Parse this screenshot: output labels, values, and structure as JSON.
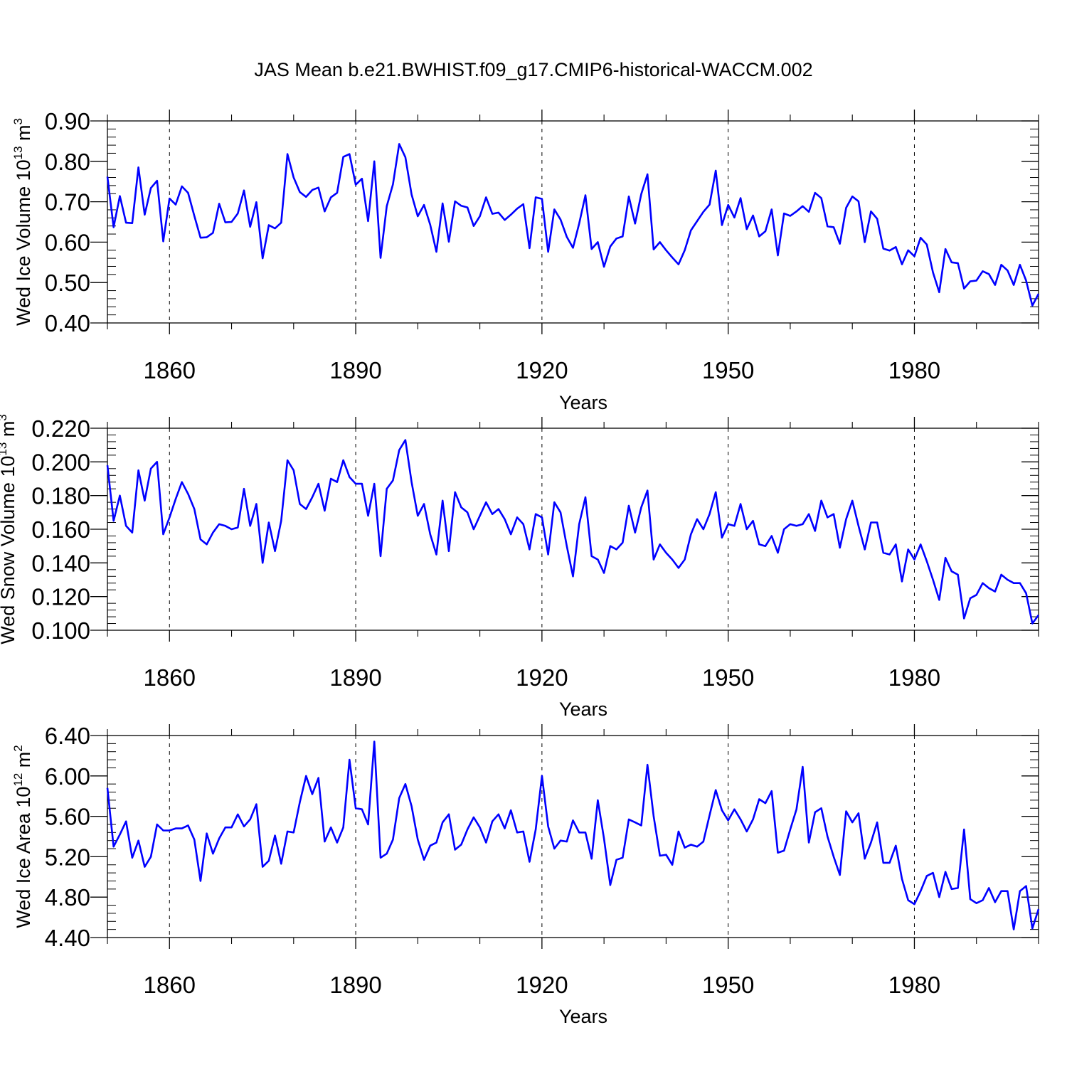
{
  "title": "JAS Mean b.e21.BWHIST.f09_g17.CMIP6-historical-WACCM.002",
  "colors": {
    "line": "#0000ff",
    "axis": "#000000",
    "grid": "#000000"
  },
  "chart_data": [
    {
      "type": "line",
      "name": "ice-volume",
      "ylabel": {
        "main": "Wed Ice Volume 10",
        "exp": "13",
        "unit": " m",
        "unit_exp": "3"
      },
      "xlabel": "Years",
      "xlim": [
        1850,
        2000
      ],
      "ylim": [
        0.4,
        0.9
      ],
      "yticks": [
        "0.40",
        "0.50",
        "0.60",
        "0.70",
        "0.80",
        "0.90"
      ],
      "xticks": [
        "1860",
        "1890",
        "1920",
        "1950",
        "1980"
      ],
      "x_start": 1850,
      "values": [
        0.762,
        0.637,
        0.714,
        0.648,
        0.647,
        0.785,
        0.668,
        0.734,
        0.752,
        0.602,
        0.708,
        0.693,
        0.738,
        0.722,
        0.665,
        0.611,
        0.612,
        0.623,
        0.695,
        0.649,
        0.65,
        0.671,
        0.728,
        0.638,
        0.699,
        0.56,
        0.642,
        0.634,
        0.648,
        0.818,
        0.76,
        0.724,
        0.712,
        0.729,
        0.735,
        0.676,
        0.711,
        0.722,
        0.811,
        0.818,
        0.742,
        0.757,
        0.652,
        0.8,
        0.561,
        0.689,
        0.743,
        0.843,
        0.81,
        0.718,
        0.664,
        0.692,
        0.643,
        0.576,
        0.696,
        0.601,
        0.701,
        0.69,
        0.686,
        0.64,
        0.664,
        0.711,
        0.67,
        0.673,
        0.655,
        0.668,
        0.683,
        0.694,
        0.585,
        0.711,
        0.707,
        0.576,
        0.681,
        0.656,
        0.613,
        0.586,
        0.646,
        0.716,
        0.583,
        0.6,
        0.539,
        0.589,
        0.609,
        0.614,
        0.713,
        0.646,
        0.719,
        0.768,
        0.582,
        0.6,
        0.58,
        0.562,
        0.545,
        0.58,
        0.629,
        0.652,
        0.675,
        0.693,
        0.777,
        0.642,
        0.692,
        0.661,
        0.709,
        0.632,
        0.666,
        0.614,
        0.627,
        0.681,
        0.567,
        0.671,
        0.665,
        0.676,
        0.689,
        0.675,
        0.722,
        0.709,
        0.639,
        0.637,
        0.596,
        0.685,
        0.713,
        0.701,
        0.6,
        0.676,
        0.658,
        0.584,
        0.579,
        0.588,
        0.545,
        0.58,
        0.565,
        0.611,
        0.594,
        0.525,
        0.476,
        0.583,
        0.55,
        0.548,
        0.485,
        0.503,
        0.505,
        0.528,
        0.521,
        0.494,
        0.544,
        0.53,
        0.494,
        0.544,
        0.505,
        0.443,
        0.472
      ]
    },
    {
      "type": "line",
      "name": "snow-volume",
      "ylabel": {
        "main": "Wed Snow Volume 10",
        "exp": "13",
        "unit": " m",
        "unit_exp": "3"
      },
      "xlabel": "Years",
      "xlim": [
        1850,
        2000
      ],
      "ylim": [
        0.1,
        0.22
      ],
      "yticks": [
        "0.100",
        "0.120",
        "0.140",
        "0.160",
        "0.180",
        "0.200",
        "0.220"
      ],
      "xticks": [
        "1860",
        "1890",
        "1920",
        "1950",
        "1980"
      ],
      "x_start": 1850,
      "values": [
        0.198,
        0.165,
        0.18,
        0.162,
        0.158,
        0.195,
        0.177,
        0.196,
        0.2,
        0.157,
        0.167,
        0.178,
        0.188,
        0.181,
        0.172,
        0.154,
        0.151,
        0.158,
        0.163,
        0.162,
        0.16,
        0.161,
        0.184,
        0.162,
        0.175,
        0.14,
        0.164,
        0.147,
        0.165,
        0.201,
        0.195,
        0.175,
        0.172,
        0.179,
        0.187,
        0.171,
        0.19,
        0.188,
        0.201,
        0.191,
        0.187,
        0.187,
        0.168,
        0.187,
        0.144,
        0.184,
        0.189,
        0.207,
        0.213,
        0.188,
        0.168,
        0.175,
        0.157,
        0.145,
        0.177,
        0.147,
        0.182,
        0.173,
        0.17,
        0.16,
        0.168,
        0.176,
        0.169,
        0.172,
        0.166,
        0.157,
        0.167,
        0.163,
        0.148,
        0.169,
        0.167,
        0.145,
        0.176,
        0.17,
        0.15,
        0.132,
        0.163,
        0.179,
        0.144,
        0.142,
        0.134,
        0.15,
        0.148,
        0.152,
        0.174,
        0.158,
        0.173,
        0.183,
        0.142,
        0.151,
        0.146,
        0.142,
        0.137,
        0.142,
        0.157,
        0.166,
        0.16,
        0.169,
        0.182,
        0.155,
        0.163,
        0.162,
        0.175,
        0.16,
        0.165,
        0.151,
        0.15,
        0.156,
        0.146,
        0.16,
        0.163,
        0.162,
        0.163,
        0.169,
        0.159,
        0.177,
        0.167,
        0.169,
        0.149,
        0.166,
        0.177,
        0.162,
        0.148,
        0.164,
        0.164,
        0.146,
        0.145,
        0.151,
        0.129,
        0.148,
        0.142,
        0.151,
        0.141,
        0.13,
        0.118,
        0.143,
        0.135,
        0.133,
        0.107,
        0.119,
        0.121,
        0.128,
        0.125,
        0.123,
        0.133,
        0.13,
        0.128,
        0.128,
        0.122,
        0.104,
        0.109
      ]
    },
    {
      "type": "line",
      "name": "ice-area",
      "ylabel": {
        "main": "Wed Ice Area 10",
        "exp": "12",
        "unit": " m",
        "unit_exp": "2"
      },
      "xlabel": "Years",
      "xlim": [
        1850,
        2000
      ],
      "ylim": [
        4.4,
        6.4
      ],
      "yticks": [
        "4.40",
        "4.80",
        "5.20",
        "5.60",
        "6.00",
        "6.40"
      ],
      "xticks": [
        "1860",
        "1890",
        "1920",
        "1950",
        "1980"
      ],
      "x_start": 1850,
      "values": [
        5.88,
        5.3,
        5.42,
        5.55,
        5.19,
        5.36,
        5.1,
        5.2,
        5.52,
        5.46,
        5.46,
        5.48,
        5.48,
        5.51,
        5.37,
        4.96,
        5.43,
        5.23,
        5.38,
        5.49,
        5.49,
        5.62,
        5.5,
        5.57,
        5.72,
        5.1,
        5.16,
        5.41,
        5.13,
        5.45,
        5.44,
        5.74,
        6.0,
        5.82,
        5.98,
        5.35,
        5.49,
        5.34,
        5.49,
        6.16,
        5.68,
        5.67,
        5.52,
        6.34,
        5.19,
        5.23,
        5.37,
        5.78,
        5.92,
        5.7,
        5.37,
        5.17,
        5.31,
        5.34,
        5.54,
        5.62,
        5.27,
        5.32,
        5.47,
        5.59,
        5.49,
        5.34,
        5.55,
        5.62,
        5.48,
        5.66,
        5.44,
        5.45,
        5.15,
        5.47,
        6.0,
        5.5,
        5.28,
        5.36,
        5.35,
        5.56,
        5.44,
        5.44,
        5.18,
        5.76,
        5.38,
        4.92,
        5.17,
        5.19,
        5.57,
        5.54,
        5.51,
        6.11,
        5.6,
        5.21,
        5.22,
        5.12,
        5.45,
        5.29,
        5.32,
        5.3,
        5.35,
        5.61,
        5.86,
        5.66,
        5.56,
        5.67,
        5.57,
        5.45,
        5.57,
        5.77,
        5.73,
        5.85,
        5.24,
        5.26,
        5.47,
        5.67,
        6.09,
        5.34,
        5.64,
        5.68,
        5.4,
        5.2,
        5.02,
        5.65,
        5.54,
        5.63,
        5.18,
        5.34,
        5.54,
        5.14,
        5.14,
        5.31,
        4.98,
        4.77,
        4.73,
        4.86,
        5.01,
        5.04,
        4.8,
        5.05,
        4.88,
        4.89,
        5.47,
        4.78,
        4.74,
        4.77,
        4.89,
        4.75,
        4.86,
        4.86,
        4.48,
        4.86,
        4.91,
        4.49,
        4.68
      ]
    }
  ]
}
